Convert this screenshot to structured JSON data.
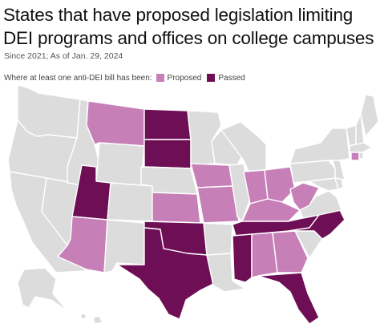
{
  "title": "States that have proposed legislation limiting DEI programs and offices on college campuses",
  "subtitle": "Since 2021; As of Jan. 29, 2024",
  "legend": {
    "label": "Where at least one anti-DEI bill has been:",
    "items": [
      {
        "key": "proposed",
        "label": "Proposed"
      },
      {
        "key": "passed",
        "label": "Passed"
      }
    ]
  },
  "colors": {
    "none": "#dcdcdc",
    "proposed": "#c77fb8",
    "passed": "#6e0e55",
    "border": "#ffffff",
    "background": "#ffffff"
  },
  "map": {
    "states": [
      {
        "id": "WA",
        "status": "none"
      },
      {
        "id": "OR",
        "status": "none"
      },
      {
        "id": "CA",
        "status": "none"
      },
      {
        "id": "NV",
        "status": "none"
      },
      {
        "id": "ID",
        "status": "none"
      },
      {
        "id": "MT",
        "status": "proposed"
      },
      {
        "id": "WY",
        "status": "none"
      },
      {
        "id": "UT",
        "status": "passed"
      },
      {
        "id": "AZ",
        "status": "proposed"
      },
      {
        "id": "CO",
        "status": "none"
      },
      {
        "id": "NM",
        "status": "none"
      },
      {
        "id": "ND",
        "status": "passed"
      },
      {
        "id": "SD",
        "status": "passed"
      },
      {
        "id": "NE",
        "status": "none"
      },
      {
        "id": "KS",
        "status": "proposed"
      },
      {
        "id": "OK",
        "status": "passed"
      },
      {
        "id": "TX",
        "status": "passed"
      },
      {
        "id": "MN",
        "status": "none"
      },
      {
        "id": "IA",
        "status": "proposed"
      },
      {
        "id": "MO",
        "status": "proposed"
      },
      {
        "id": "AR",
        "status": "none"
      },
      {
        "id": "LA",
        "status": "none"
      },
      {
        "id": "WI",
        "status": "none"
      },
      {
        "id": "IL",
        "status": "none"
      },
      {
        "id": "MI",
        "status": "none"
      },
      {
        "id": "IN",
        "status": "proposed"
      },
      {
        "id": "OH",
        "status": "proposed"
      },
      {
        "id": "KY",
        "status": "proposed"
      },
      {
        "id": "TN",
        "status": "passed"
      },
      {
        "id": "MS",
        "status": "passed"
      },
      {
        "id": "AL",
        "status": "proposed"
      },
      {
        "id": "GA",
        "status": "proposed"
      },
      {
        "id": "FL",
        "status": "passed"
      },
      {
        "id": "SC",
        "status": "none"
      },
      {
        "id": "NC",
        "status": "passed"
      },
      {
        "id": "VA",
        "status": "none"
      },
      {
        "id": "WV",
        "status": "proposed"
      },
      {
        "id": "PA",
        "status": "none"
      },
      {
        "id": "NY",
        "status": "none"
      },
      {
        "id": "NJ",
        "status": "none"
      },
      {
        "id": "DE",
        "status": "none"
      },
      {
        "id": "MD",
        "status": "none"
      },
      {
        "id": "VT",
        "status": "none"
      },
      {
        "id": "NH",
        "status": "none"
      },
      {
        "id": "ME",
        "status": "none"
      },
      {
        "id": "MA",
        "status": "none"
      },
      {
        "id": "CT",
        "status": "proposed"
      },
      {
        "id": "RI",
        "status": "none"
      },
      {
        "id": "AK",
        "status": "none"
      },
      {
        "id": "HI",
        "status": "none"
      }
    ]
  }
}
